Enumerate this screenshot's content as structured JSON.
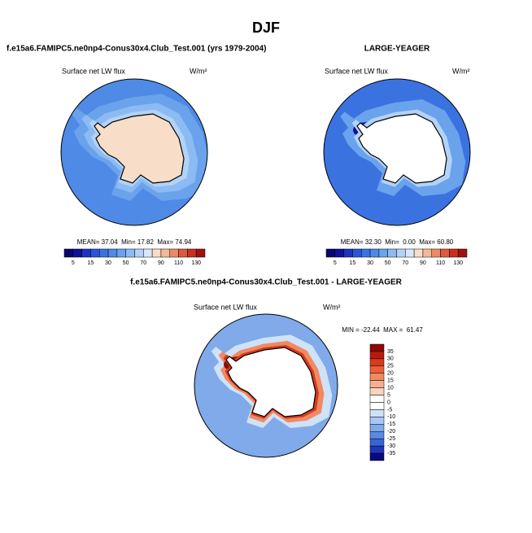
{
  "header": {
    "title": "DJF"
  },
  "panels": [
    {
      "title": "f.e15a6.FAMIPC5.ne0np4-Conus30x4.Club_Test.001 (yrs 1979-2004)",
      "variable": "Surface net LW flux",
      "units": "W/m²",
      "stats": "MEAN= 37.04  Min= 17.82  Max= 74.94",
      "colorbar": {
        "labels": [
          "5",
          "15",
          "30",
          "50",
          "70",
          "90",
          "110",
          "130"
        ],
        "colors": [
          "#080870",
          "#10109a",
          "#1e32c0",
          "#2a55d8",
          "#3a72e0",
          "#4e8ae6",
          "#6aa2ec",
          "#8cbaf2",
          "#b2d2f6",
          "#d8e8fa",
          "#f8ddc8",
          "#f4b898",
          "#ec8a66",
          "#de5a3e",
          "#c8301e",
          "#a01010"
        ]
      }
    },
    {
      "title": "LARGE-YEAGER",
      "variable": "Surface net LW flux",
      "units": "W/m²",
      "stats": "MEAN= 32.30  Min=  0.00  Max= 60.80",
      "colorbar": {
        "labels": [
          "5",
          "15",
          "30",
          "50",
          "70",
          "90",
          "110",
          "130"
        ],
        "colors": [
          "#080870",
          "#10109a",
          "#1e32c0",
          "#2a55d8",
          "#3a72e0",
          "#4e8ae6",
          "#6aa2ec",
          "#8cbaf2",
          "#b2d2f6",
          "#d8e8fa",
          "#f8ddc8",
          "#f4b898",
          "#ec8a66",
          "#de5a3e",
          "#c8301e",
          "#a01010"
        ]
      }
    },
    {
      "title": "f.e15a6.FAMIPC5.ne0np4-Conus30x4.Club_Test.001 - LARGE-YEAGER",
      "variable": "Surface net LW flux",
      "units": "W/m²",
      "stats": "MIN = -22.44  MAX =  61.47",
      "colorbar": {
        "labels": [
          "35",
          "30",
          "25",
          "20",
          "15",
          "10",
          "5",
          "0",
          "-5",
          "-10",
          "-15",
          "-20",
          "-25",
          "-30",
          "-35"
        ],
        "colors": [
          "#8c0a0a",
          "#b81a10",
          "#d83a1e",
          "#e8603a",
          "#f08a62",
          "#f6b090",
          "#fad4bc",
          "#ffffff",
          "#ffffff",
          "#cfe2f8",
          "#a8c8f2",
          "#80aaea",
          "#5a8ae2",
          "#3a64d4",
          "#1e36b8",
          "#0a0a80"
        ]
      }
    }
  ]
}
